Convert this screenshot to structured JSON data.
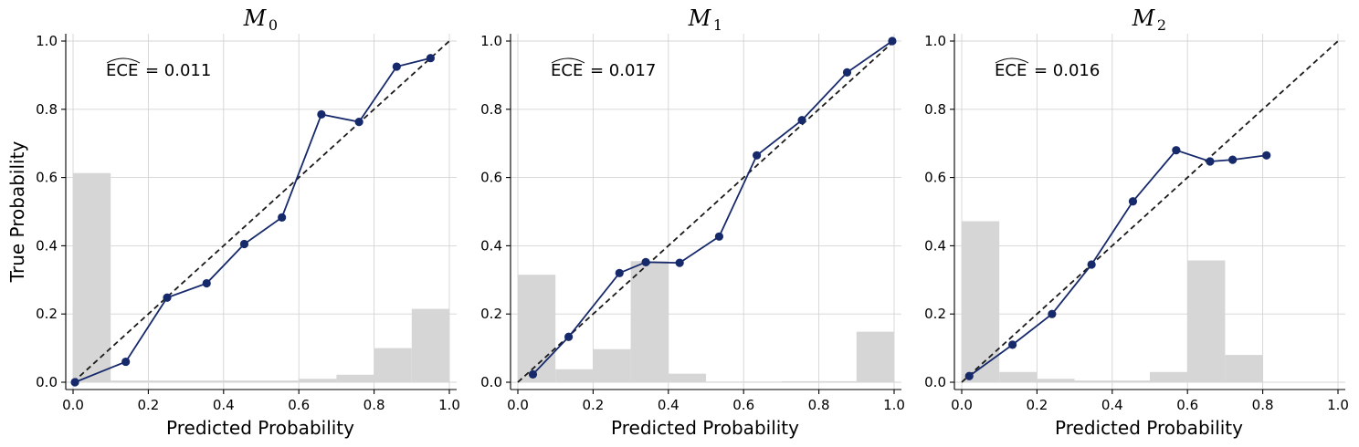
{
  "figure": {
    "colors": {
      "line": "#16296b",
      "marker": "#16296b",
      "hist": "#d6d6d6",
      "diagonal": "#1a1a1a",
      "grid": "#d4d4d4"
    }
  },
  "chart_data": [
    {
      "type": "line",
      "title_symbol": "M",
      "title_subscript": "0",
      "xlabel": "Predicted Probability",
      "ylabel": "True Probability",
      "ece_label": "ECE",
      "ece_value": "= 0.011",
      "xlim": [
        0,
        1
      ],
      "ylim": [
        0,
        1
      ],
      "ticks": [
        "0.0",
        "0.2",
        "0.4",
        "0.6",
        "0.8",
        "1.0"
      ],
      "grid": true,
      "diagonal": [
        [
          0,
          0
        ],
        [
          1,
          1
        ]
      ],
      "calibration": {
        "x": [
          0.005,
          0.14,
          0.25,
          0.355,
          0.455,
          0.555,
          0.66,
          0.76,
          0.86,
          0.95
        ],
        "y": [
          0.0,
          0.06,
          0.248,
          0.29,
          0.405,
          0.483,
          0.785,
          0.763,
          0.925,
          0.95
        ]
      },
      "histogram": {
        "bin_edges": [
          0.0,
          0.1,
          0.2,
          0.3,
          0.4,
          0.5,
          0.6,
          0.7,
          0.8,
          0.9,
          1.0
        ],
        "values": [
          0.613,
          0.005,
          0.005,
          0.005,
          0.005,
          0.005,
          0.01,
          0.022,
          0.1,
          0.215
        ]
      }
    },
    {
      "type": "line",
      "title_symbol": "M",
      "title_subscript": "1",
      "xlabel": "Predicted Probability",
      "ylabel": "",
      "ece_label": "ECE",
      "ece_value": "= 0.017",
      "xlim": [
        0,
        1
      ],
      "ylim": [
        0,
        1
      ],
      "ticks": [
        "0.0",
        "0.2",
        "0.4",
        "0.6",
        "0.8",
        "1.0"
      ],
      "grid": true,
      "diagonal": [
        [
          0,
          0
        ],
        [
          1,
          1
        ]
      ],
      "calibration": {
        "x": [
          0.04,
          0.135,
          0.27,
          0.34,
          0.43,
          0.535,
          0.635,
          0.755,
          0.875,
          0.995
        ],
        "y": [
          0.023,
          0.133,
          0.32,
          0.352,
          0.35,
          0.427,
          0.665,
          0.768,
          0.908,
          1.0
        ]
      },
      "histogram": {
        "bin_edges": [
          0.0,
          0.1,
          0.2,
          0.3,
          0.4,
          0.5,
          0.6,
          0.7,
          0.8,
          0.9,
          1.0
        ],
        "values": [
          0.315,
          0.038,
          0.097,
          0.355,
          0.025,
          0.002,
          0.002,
          0.003,
          0.003,
          0.148
        ]
      }
    },
    {
      "type": "line",
      "title_symbol": "M",
      "title_subscript": "2",
      "xlabel": "Predicted Probability",
      "ylabel": "",
      "ece_label": "ECE",
      "ece_value": "= 0.016",
      "xlim": [
        0,
        1
      ],
      "ylim": [
        0,
        1
      ],
      "ticks": [
        "0.0",
        "0.2",
        "0.4",
        "0.6",
        "0.8",
        "1.0"
      ],
      "grid": true,
      "diagonal": [
        [
          0,
          0
        ],
        [
          1,
          1
        ]
      ],
      "calibration": {
        "x": [
          0.02,
          0.135,
          0.24,
          0.345,
          0.455,
          0.57,
          0.66,
          0.72,
          0.81
        ],
        "y": [
          0.018,
          0.11,
          0.2,
          0.345,
          0.53,
          0.68,
          0.647,
          0.652,
          0.665
        ]
      },
      "histogram": {
        "bin_edges": [
          0.0,
          0.1,
          0.2,
          0.3,
          0.4,
          0.5,
          0.6,
          0.7,
          0.8,
          0.9,
          1.0
        ],
        "values": [
          0.472,
          0.03,
          0.01,
          0.005,
          0.005,
          0.03,
          0.357,
          0.08,
          0.0,
          0.0
        ]
      }
    }
  ]
}
